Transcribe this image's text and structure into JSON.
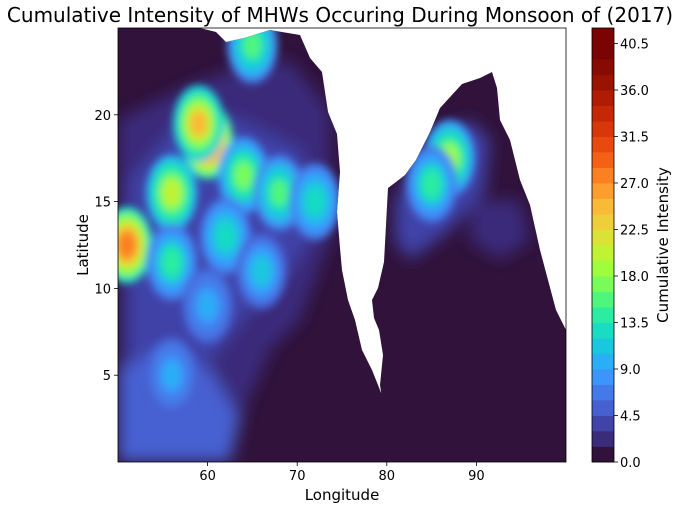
{
  "chart_data": {
    "type": "heatmap",
    "title": "Cumulative Intensity of MHWs Occuring During Monsoon of (2017)",
    "xlabel": "Longitude",
    "ylabel": "Latitude",
    "xlim": [
      50,
      100
    ],
    "ylim": [
      0,
      25
    ],
    "x_ticks": [
      60,
      70,
      80,
      90
    ],
    "y_ticks": [
      5,
      10,
      15,
      20
    ],
    "colorbar": {
      "label": "Cumulative Intensity",
      "range": [
        0,
        42
      ],
      "ticks": [
        "0.0",
        "4.5",
        "9.0",
        "13.5",
        "18.0",
        "22.5",
        "27.0",
        "31.5",
        "36.0",
        "40.5"
      ],
      "levels": [
        0,
        1.5,
        3,
        4.5,
        6,
        7.5,
        9,
        10.5,
        12,
        13.5,
        15,
        16.5,
        18,
        19.5,
        21,
        22.5,
        24,
        25.5,
        27,
        28.5,
        30,
        31.5,
        33,
        34.5,
        36,
        37.5,
        39,
        40.5,
        42
      ],
      "colors": [
        "#30123b",
        "#3a2c7a",
        "#4043a8",
        "#4660d2",
        "#447ae8",
        "#3b95fd",
        "#2aaef5",
        "#1ac8de",
        "#19dcc2",
        "#2ceca2",
        "#4ff67c",
        "#79fc5a",
        "#a0fd3d",
        "#c0f334",
        "#dae235",
        "#eecf3a",
        "#fbb938",
        "#fe9e2c",
        "#fb8022",
        "#f46116",
        "#e8490e",
        "#d8370a",
        "#c52806",
        "#b01c03",
        "#9a1202",
        "#880b01",
        "#7a0403",
        "#7a0403"
      ]
    },
    "hotspots": [
      {
        "lon": 60,
        "lat": 18.5,
        "value": 31
      },
      {
        "lon": 59,
        "lat": 19.5,
        "value": 24
      },
      {
        "lon": 51,
        "lat": 12.5,
        "value": 28
      },
      {
        "lon": 56,
        "lat": 15.5,
        "value": 20
      },
      {
        "lon": 64,
        "lat": 16.5,
        "value": 17
      },
      {
        "lon": 68,
        "lat": 15.5,
        "value": 15
      },
      {
        "lon": 72,
        "lat": 15,
        "value": 13
      },
      {
        "lon": 87,
        "lat": 17.5,
        "value": 18
      },
      {
        "lon": 85,
        "lat": 16,
        "value": 14
      },
      {
        "lon": 56,
        "lat": 11.5,
        "value": 14
      },
      {
        "lon": 62,
        "lat": 13,
        "value": 13
      },
      {
        "lon": 66,
        "lat": 11,
        "value": 11
      },
      {
        "lon": 60,
        "lat": 9,
        "value": 10
      },
      {
        "lon": 65,
        "lat": 24,
        "value": 15
      },
      {
        "lon": 56,
        "lat": 5,
        "value": 10
      }
    ]
  }
}
